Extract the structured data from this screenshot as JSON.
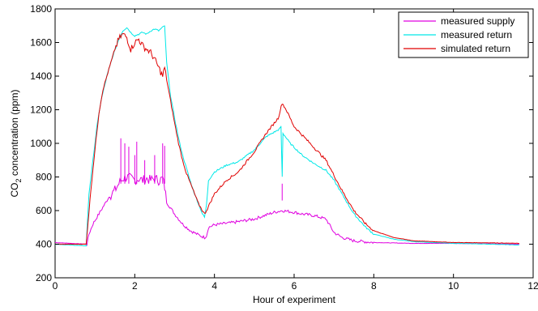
{
  "chart_data": {
    "type": "line",
    "title": "",
    "xlabel": "Hour of experiment",
    "ylabel_parts": {
      "main": "CO",
      "sub": "2",
      "rest": " concentration (ppm)"
    },
    "xlim": [
      0,
      12
    ],
    "ylim": [
      200,
      1800
    ],
    "xticks": [
      0,
      2,
      4,
      6,
      8,
      10,
      12
    ],
    "yticks": [
      200,
      400,
      600,
      800,
      1000,
      1200,
      1400,
      1600,
      1800
    ],
    "grid": false,
    "legend_position": "top-right",
    "series": [
      {
        "name": "measured supply",
        "color": "#e000e0",
        "points": [
          [
            0,
            410
          ],
          [
            0.8,
            400
          ],
          [
            0.85,
            460
          ],
          [
            0.95,
            520
          ],
          [
            1.05,
            560
          ],
          [
            1.2,
            620
          ],
          [
            1.35,
            680
          ],
          [
            1.5,
            720
          ],
          [
            1.6,
            760
          ],
          [
            1.7,
            790
          ],
          [
            1.8,
            800
          ],
          [
            1.9,
            790
          ],
          [
            2.0,
            780
          ],
          [
            2.1,
            790
          ],
          [
            2.2,
            780
          ],
          [
            2.3,
            790
          ],
          [
            2.4,
            780
          ],
          [
            2.5,
            790
          ],
          [
            2.6,
            780
          ],
          [
            2.7,
            790
          ],
          [
            2.75,
            740
          ],
          [
            2.8,
            650
          ],
          [
            3.0,
            580
          ],
          [
            3.2,
            520
          ],
          [
            3.4,
            480
          ],
          [
            3.6,
            455
          ],
          [
            3.75,
            440
          ],
          [
            3.8,
            450
          ],
          [
            3.85,
            500
          ],
          [
            4.0,
            515
          ],
          [
            4.5,
            530
          ],
          [
            5.0,
            550
          ],
          [
            5.5,
            590
          ],
          [
            5.7,
            600
          ],
          [
            6.0,
            590
          ],
          [
            6.2,
            580
          ],
          [
            6.5,
            570
          ],
          [
            6.8,
            550
          ],
          [
            7.0,
            470
          ],
          [
            7.2,
            440
          ],
          [
            7.5,
            420
          ],
          [
            8.0,
            410
          ],
          [
            9.0,
            405
          ],
          [
            10.0,
            405
          ],
          [
            11.0,
            402
          ],
          [
            11.65,
            400
          ]
        ],
        "spikes": [
          [
            1.65,
            1030
          ],
          [
            1.75,
            1000
          ],
          [
            2.0,
            930
          ],
          [
            2.05,
            1010
          ],
          [
            1.85,
            980
          ],
          [
            2.25,
            900
          ],
          [
            2.5,
            930
          ],
          [
            2.7,
            1000
          ],
          [
            2.75,
            985
          ],
          [
            5.7,
            660
          ]
        ]
      },
      {
        "name": "measured return",
        "color": "#00e8e8",
        "points": [
          [
            0,
            400
          ],
          [
            0.78,
            390
          ],
          [
            0.85,
            700
          ],
          [
            0.95,
            900
          ],
          [
            1.05,
            1100
          ],
          [
            1.15,
            1250
          ],
          [
            1.3,
            1400
          ],
          [
            1.45,
            1520
          ],
          [
            1.6,
            1620
          ],
          [
            1.7,
            1670
          ],
          [
            1.8,
            1690
          ],
          [
            1.9,
            1660
          ],
          [
            2.0,
            1640
          ],
          [
            2.1,
            1650
          ],
          [
            2.2,
            1660
          ],
          [
            2.3,
            1650
          ],
          [
            2.4,
            1670
          ],
          [
            2.5,
            1680
          ],
          [
            2.6,
            1670
          ],
          [
            2.7,
            1690
          ],
          [
            2.75,
            1700
          ],
          [
            2.8,
            1480
          ],
          [
            2.9,
            1280
          ],
          [
            3.0,
            1150
          ],
          [
            3.1,
            1030
          ],
          [
            3.2,
            930
          ],
          [
            3.3,
            850
          ],
          [
            3.4,
            770
          ],
          [
            3.5,
            700
          ],
          [
            3.6,
            640
          ],
          [
            3.7,
            580
          ],
          [
            3.75,
            560
          ],
          [
            3.8,
            630
          ],
          [
            3.85,
            780
          ],
          [
            4.0,
            830
          ],
          [
            4.3,
            870
          ],
          [
            4.6,
            890
          ],
          [
            5.0,
            960
          ],
          [
            5.3,
            1040
          ],
          [
            5.6,
            1080
          ],
          [
            5.65,
            1090
          ],
          [
            5.67,
            1100
          ],
          [
            5.7,
            800
          ],
          [
            5.72,
            1060
          ],
          [
            5.9,
            1000
          ],
          [
            6.2,
            930
          ],
          [
            6.5,
            880
          ],
          [
            6.8,
            840
          ],
          [
            7.0,
            780
          ],
          [
            7.2,
            700
          ],
          [
            7.5,
            580
          ],
          [
            7.8,
            500
          ],
          [
            8.0,
            460
          ],
          [
            8.5,
            430
          ],
          [
            9.0,
            415
          ],
          [
            10.0,
            405
          ],
          [
            11.0,
            400
          ],
          [
            11.65,
            395
          ]
        ]
      },
      {
        "name": "simulated return",
        "color": "#e00000",
        "points": [
          [
            0,
            400
          ],
          [
            0.78,
            400
          ],
          [
            0.9,
            730
          ],
          [
            1.0,
            960
          ],
          [
            1.1,
            1180
          ],
          [
            1.2,
            1320
          ],
          [
            1.35,
            1440
          ],
          [
            1.5,
            1560
          ],
          [
            1.6,
            1620
          ],
          [
            1.7,
            1650
          ],
          [
            1.8,
            1630
          ],
          [
            1.9,
            1560
          ],
          [
            2.0,
            1600
          ],
          [
            2.1,
            1620
          ],
          [
            2.2,
            1580
          ],
          [
            2.3,
            1560
          ],
          [
            2.4,
            1540
          ],
          [
            2.5,
            1500
          ],
          [
            2.6,
            1450
          ],
          [
            2.7,
            1400
          ],
          [
            2.75,
            1450
          ],
          [
            2.8,
            1380
          ],
          [
            2.9,
            1250
          ],
          [
            3.0,
            1120
          ],
          [
            3.1,
            1000
          ],
          [
            3.2,
            900
          ],
          [
            3.3,
            820
          ],
          [
            3.4,
            760
          ],
          [
            3.5,
            700
          ],
          [
            3.6,
            640
          ],
          [
            3.7,
            600
          ],
          [
            3.75,
            580
          ],
          [
            3.8,
            600
          ],
          [
            4.0,
            700
          ],
          [
            4.3,
            780
          ],
          [
            4.6,
            830
          ],
          [
            5.0,
            950
          ],
          [
            5.3,
            1060
          ],
          [
            5.6,
            1150
          ],
          [
            5.7,
            1240
          ],
          [
            5.8,
            1200
          ],
          [
            6.0,
            1100
          ],
          [
            6.2,
            1050
          ],
          [
            6.4,
            1000
          ],
          [
            6.6,
            950
          ],
          [
            6.8,
            900
          ],
          [
            7.0,
            810
          ],
          [
            7.2,
            720
          ],
          [
            7.5,
            600
          ],
          [
            7.8,
            520
          ],
          [
            8.0,
            480
          ],
          [
            8.5,
            440
          ],
          [
            9.0,
            420
          ],
          [
            10.0,
            410
          ],
          [
            11.0,
            408
          ],
          [
            11.65,
            405
          ]
        ]
      }
    ]
  }
}
